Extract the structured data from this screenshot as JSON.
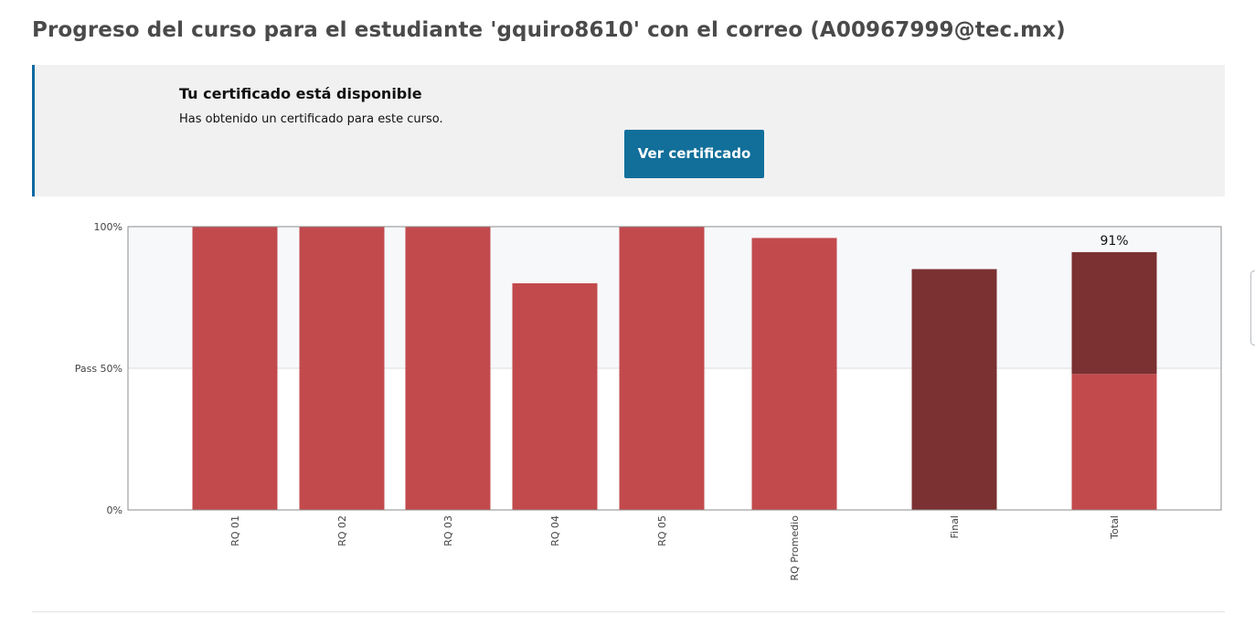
{
  "header": {
    "title": "Progreso del curso para el estudiante 'gquiro8610' con el correo (A00967999@tec.mx)"
  },
  "certificate": {
    "title": "Tu certificado está disponible",
    "message": "Has obtenido un certificado para este curso.",
    "button_label": "Ver certificado",
    "accent_color": "#0b6aa2",
    "button_color": "#126f9a"
  },
  "chart_data": {
    "type": "bar",
    "categories": [
      "RQ 01",
      "RQ 02",
      "RQ 03",
      "RQ 04",
      "RQ 05",
      "RQ Promedio",
      "Final",
      "Total"
    ],
    "values": [
      100,
      100,
      100,
      80,
      100,
      96,
      85,
      91
    ],
    "total_segments": [
      {
        "label": "RQ",
        "value": 48
      },
      {
        "label": "Final",
        "value": 43
      }
    ],
    "total_label": "91%",
    "y_ticks": [
      {
        "value": 0,
        "label": "0%"
      },
      {
        "value": 50,
        "label": "Pass 50%"
      },
      {
        "value": 100,
        "label": "100%"
      }
    ],
    "ylim": [
      0,
      100
    ],
    "pass_threshold": 50,
    "colors": {
      "assignment": "#c24a4d",
      "final": "#7b3031",
      "pass_band": "#f7f8fa"
    }
  }
}
